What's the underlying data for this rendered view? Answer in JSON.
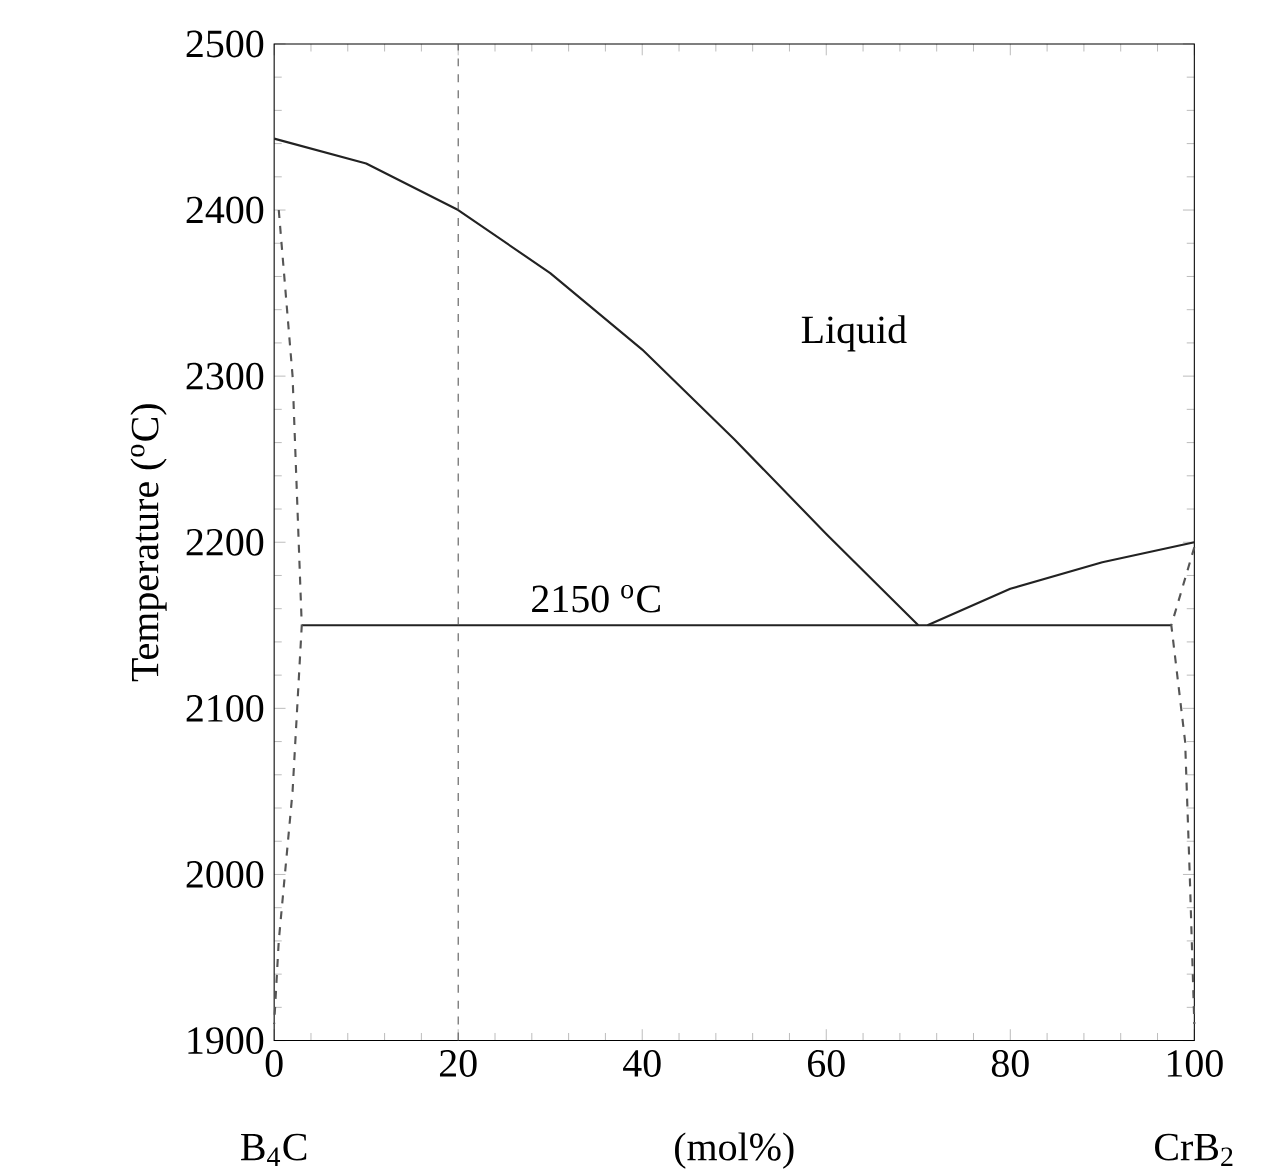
{
  "chart_data": {
    "type": "line",
    "ylabel": "Temperature  ($^{o}$C)",
    "xlabel": "(mol%)",
    "xlim": [
      0,
      100
    ],
    "ylim": [
      1900,
      2500
    ],
    "xticks": [
      0,
      20,
      40,
      60,
      80,
      100
    ],
    "yticks": [
      1900,
      2000,
      2100,
      2200,
      2300,
      2400,
      2500
    ],
    "marker": "none",
    "series": [
      {
        "color": "#222222",
        "line_style": "solid",
        "x": [
          0,
          10,
          20,
          30,
          40,
          50,
          60,
          70
        ],
        "values": [
          2443,
          2428,
          2400,
          2362,
          2316,
          2262,
          2205,
          2150
        ]
      },
      {
        "color": "#222222",
        "line_style": "solid",
        "x": [
          71,
          80,
          90,
          100
        ],
        "values": [
          2150,
          2172,
          2188,
          2200
        ]
      },
      {
        "color": "#222222",
        "line_style": "solid",
        "x": [
          3,
          97.5
        ],
        "values": [
          2150,
          2150
        ]
      },
      {
        "color": "#555555",
        "line_style": "dashed",
        "x": [
          0.5,
          2,
          3,
          2,
          0.5,
          0
        ],
        "values": [
          2400,
          2300,
          2150,
          2050,
          1960,
          1910
        ]
      },
      {
        "color": "#555555",
        "line_style": "dashed",
        "x": [
          100,
          97.5,
          99,
          99.5,
          100
        ],
        "values": [
          2197,
          2150,
          2080,
          2000,
          1910
        ]
      }
    ],
    "ref_lines": [
      {
        "axis": "x",
        "value": 20,
        "color": "#555555",
        "line_style": "dashed"
      }
    ],
    "annotations": [
      "Liquid",
      "2150 $^{o}$C",
      "B$_{4}$C",
      "CrB$_{2}$"
    ]
  }
}
